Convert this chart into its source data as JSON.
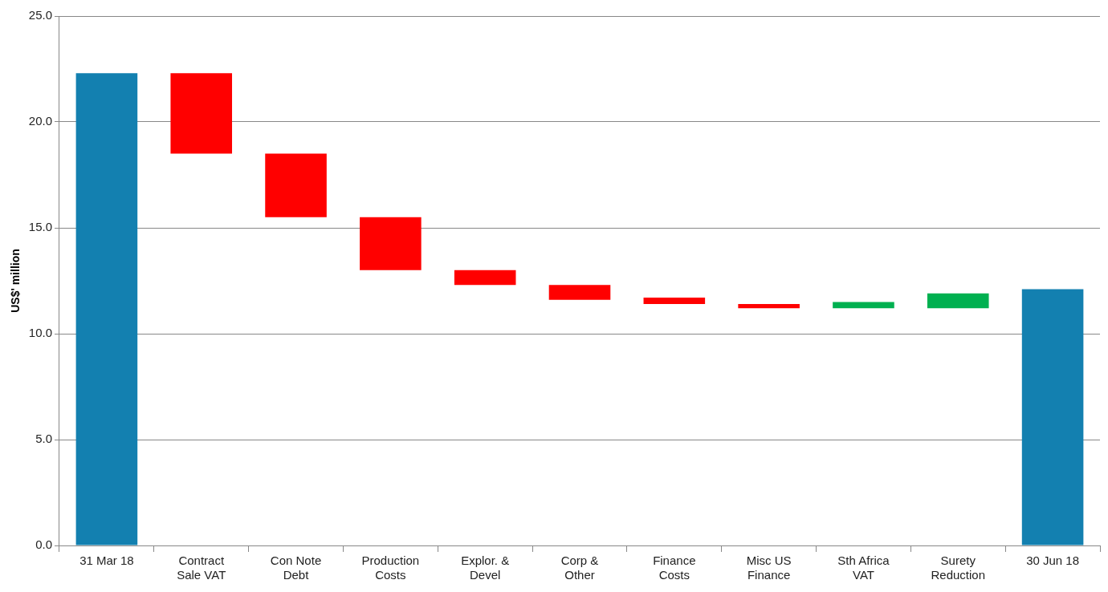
{
  "chart_data": {
    "type": "bar",
    "ylabel": "US$' million",
    "categories": [
      "31 Mar 18",
      "Contract Sale VAT",
      "Con Note Debt",
      "Production Costs",
      "Explor. & Devel",
      "Corp & Other",
      "Finance Costs",
      "Misc US Finance",
      "Sth Africa VAT",
      "Surety Reduction",
      "30 Jun 18"
    ],
    "base": [
      0,
      22.3,
      18.5,
      15.5,
      13.0,
      12.3,
      11.7,
      11.4,
      11.2,
      11.2,
      0
    ],
    "values": [
      22.3,
      -3.8,
      -3.0,
      -2.5,
      -0.7,
      -0.7,
      -0.3,
      -0.2,
      0.3,
      0.7,
      12.1
    ],
    "colors": [
      "#1380b0",
      "#ff0000",
      "#ff0000",
      "#ff0000",
      "#ff0000",
      "#ff0000",
      "#ff0000",
      "#ff0000",
      "#00b050",
      "#00b050",
      "#1380b0"
    ],
    "ylim": [
      0,
      25
    ],
    "yticks": [
      {
        "value": 0,
        "label": "0.0"
      },
      {
        "value": 5,
        "label": "5.0"
      },
      {
        "value": 10,
        "label": "10.0"
      },
      {
        "value": 15,
        "label": "15.0"
      },
      {
        "value": 20,
        "label": "20.0"
      },
      {
        "value": 25,
        "label": "25.0"
      }
    ],
    "grid": "y",
    "legend": false
  }
}
